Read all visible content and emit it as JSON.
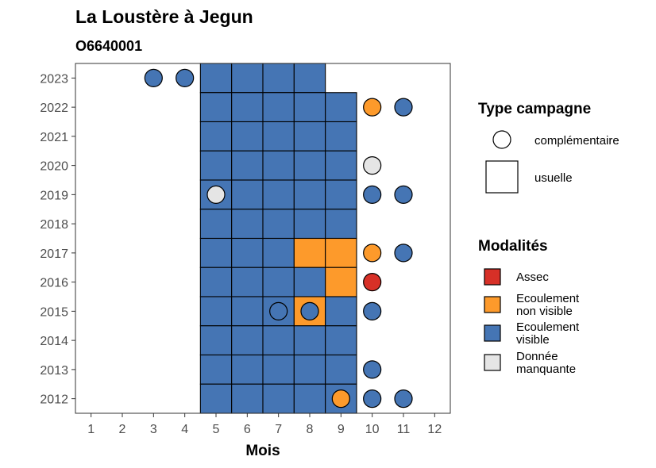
{
  "chart_data": {
    "type": "heatmap",
    "title": "La Loustère à Jegun",
    "subtitle": "O6640001",
    "xlabel": "Mois",
    "ylabel": "",
    "x_ticks": [
      1,
      2,
      3,
      4,
      5,
      6,
      7,
      8,
      9,
      10,
      11,
      12
    ],
    "y_ticks": [
      2012,
      2013,
      2014,
      2015,
      2016,
      2017,
      2018,
      2019,
      2020,
      2021,
      2022,
      2023
    ],
    "xlim": [
      0.5,
      12.5
    ],
    "ylim": [
      2011.5,
      2023.5
    ],
    "colors": {
      "Assec": "#d73027",
      "Ecoulement non visible": "#fd9a2b",
      "Ecoulement visible": "#4575b4",
      "Donnée manquante": "#e5e5e5"
    },
    "legend_shape": {
      "title": "Type campagne",
      "placement": "right",
      "items": [
        {
          "key": "circle",
          "label": "complémentaire"
        },
        {
          "key": "square",
          "label": "usuelle"
        }
      ]
    },
    "legend_fill": {
      "title": "Modalités",
      "placement": "right",
      "items": [
        {
          "key": "Assec",
          "label_lines": [
            "Assec"
          ]
        },
        {
          "key": "Ecoulement non visible",
          "label_lines": [
            "Ecoulement",
            "non visible"
          ]
        },
        {
          "key": "Ecoulement visible",
          "label_lines": [
            "Ecoulement",
            "visible"
          ]
        },
        {
          "key": "Donnée manquante",
          "label_lines": [
            "Donnée",
            "manquante"
          ]
        }
      ]
    },
    "usuelle": [
      {
        "year": 2023,
        "month": 5,
        "value": "Ecoulement visible"
      },
      {
        "year": 2023,
        "month": 6,
        "value": "Ecoulement visible"
      },
      {
        "year": 2023,
        "month": 7,
        "value": "Ecoulement visible"
      },
      {
        "year": 2023,
        "month": 8,
        "value": "Ecoulement visible"
      },
      {
        "year": 2022,
        "month": 5,
        "value": "Ecoulement visible"
      },
      {
        "year": 2022,
        "month": 6,
        "value": "Ecoulement visible"
      },
      {
        "year": 2022,
        "month": 7,
        "value": "Ecoulement visible"
      },
      {
        "year": 2022,
        "month": 8,
        "value": "Ecoulement visible"
      },
      {
        "year": 2022,
        "month": 9,
        "value": "Ecoulement visible"
      },
      {
        "year": 2021,
        "month": 5,
        "value": "Ecoulement visible"
      },
      {
        "year": 2021,
        "month": 6,
        "value": "Ecoulement visible"
      },
      {
        "year": 2021,
        "month": 7,
        "value": "Ecoulement visible"
      },
      {
        "year": 2021,
        "month": 8,
        "value": "Ecoulement visible"
      },
      {
        "year": 2021,
        "month": 9,
        "value": "Ecoulement visible"
      },
      {
        "year": 2020,
        "month": 5,
        "value": "Ecoulement visible"
      },
      {
        "year": 2020,
        "month": 6,
        "value": "Ecoulement visible"
      },
      {
        "year": 2020,
        "month": 7,
        "value": "Ecoulement visible"
      },
      {
        "year": 2020,
        "month": 8,
        "value": "Ecoulement visible"
      },
      {
        "year": 2020,
        "month": 9,
        "value": "Ecoulement visible"
      },
      {
        "year": 2019,
        "month": 5,
        "value": "Ecoulement visible"
      },
      {
        "year": 2019,
        "month": 6,
        "value": "Ecoulement visible"
      },
      {
        "year": 2019,
        "month": 7,
        "value": "Ecoulement visible"
      },
      {
        "year": 2019,
        "month": 8,
        "value": "Ecoulement visible"
      },
      {
        "year": 2019,
        "month": 9,
        "value": "Ecoulement visible"
      },
      {
        "year": 2018,
        "month": 5,
        "value": "Ecoulement visible"
      },
      {
        "year": 2018,
        "month": 6,
        "value": "Ecoulement visible"
      },
      {
        "year": 2018,
        "month": 7,
        "value": "Ecoulement visible"
      },
      {
        "year": 2018,
        "month": 8,
        "value": "Ecoulement visible"
      },
      {
        "year": 2018,
        "month": 9,
        "value": "Ecoulement visible"
      },
      {
        "year": 2017,
        "month": 5,
        "value": "Ecoulement visible"
      },
      {
        "year": 2017,
        "month": 6,
        "value": "Ecoulement visible"
      },
      {
        "year": 2017,
        "month": 7,
        "value": "Ecoulement visible"
      },
      {
        "year": 2017,
        "month": 8,
        "value": "Ecoulement non visible"
      },
      {
        "year": 2017,
        "month": 9,
        "value": "Ecoulement non visible"
      },
      {
        "year": 2016,
        "month": 5,
        "value": "Ecoulement visible"
      },
      {
        "year": 2016,
        "month": 6,
        "value": "Ecoulement visible"
      },
      {
        "year": 2016,
        "month": 7,
        "value": "Ecoulement visible"
      },
      {
        "year": 2016,
        "month": 8,
        "value": "Ecoulement visible"
      },
      {
        "year": 2016,
        "month": 9,
        "value": "Ecoulement non visible"
      },
      {
        "year": 2015,
        "month": 5,
        "value": "Ecoulement visible"
      },
      {
        "year": 2015,
        "month": 6,
        "value": "Ecoulement visible"
      },
      {
        "year": 2015,
        "month": 7,
        "value": "Ecoulement visible"
      },
      {
        "year": 2015,
        "month": 8,
        "value": "Ecoulement non visible"
      },
      {
        "year": 2015,
        "month": 9,
        "value": "Ecoulement visible"
      },
      {
        "year": 2014,
        "month": 5,
        "value": "Ecoulement visible"
      },
      {
        "year": 2014,
        "month": 6,
        "value": "Ecoulement visible"
      },
      {
        "year": 2014,
        "month": 7,
        "value": "Ecoulement visible"
      },
      {
        "year": 2014,
        "month": 8,
        "value": "Ecoulement visible"
      },
      {
        "year": 2014,
        "month": 9,
        "value": "Ecoulement visible"
      },
      {
        "year": 2013,
        "month": 5,
        "value": "Ecoulement visible"
      },
      {
        "year": 2013,
        "month": 6,
        "value": "Ecoulement visible"
      },
      {
        "year": 2013,
        "month": 7,
        "value": "Ecoulement visible"
      },
      {
        "year": 2013,
        "month": 8,
        "value": "Ecoulement visible"
      },
      {
        "year": 2013,
        "month": 9,
        "value": "Ecoulement visible"
      },
      {
        "year": 2012,
        "month": 5,
        "value": "Ecoulement visible"
      },
      {
        "year": 2012,
        "month": 6,
        "value": "Ecoulement visible"
      },
      {
        "year": 2012,
        "month": 7,
        "value": "Ecoulement visible"
      },
      {
        "year": 2012,
        "month": 8,
        "value": "Ecoulement visible"
      },
      {
        "year": 2012,
        "month": 9,
        "value": "Ecoulement visible"
      }
    ],
    "complementaire": [
      {
        "year": 2023,
        "month": 3,
        "value": "Ecoulement visible"
      },
      {
        "year": 2023,
        "month": 4,
        "value": "Ecoulement visible"
      },
      {
        "year": 2022,
        "month": 10,
        "value": "Ecoulement non visible"
      },
      {
        "year": 2022,
        "month": 11,
        "value": "Ecoulement visible"
      },
      {
        "year": 2020,
        "month": 10,
        "value": "Donnée manquante"
      },
      {
        "year": 2019,
        "month": 5,
        "value": "Donnée manquante"
      },
      {
        "year": 2019,
        "month": 10,
        "value": "Ecoulement visible"
      },
      {
        "year": 2019,
        "month": 11,
        "value": "Ecoulement visible"
      },
      {
        "year": 2017,
        "month": 10,
        "value": "Ecoulement non visible"
      },
      {
        "year": 2017,
        "month": 11,
        "value": "Ecoulement visible"
      },
      {
        "year": 2016,
        "month": 10,
        "value": "Assec"
      },
      {
        "year": 2015,
        "month": 7,
        "value": "Ecoulement visible"
      },
      {
        "year": 2015,
        "month": 8,
        "value": "Ecoulement visible"
      },
      {
        "year": 2015,
        "month": 10,
        "value": "Ecoulement visible"
      },
      {
        "year": 2013,
        "month": 10,
        "value": "Ecoulement visible"
      },
      {
        "year": 2012,
        "month": 9,
        "value": "Ecoulement non visible"
      },
      {
        "year": 2012,
        "month": 10,
        "value": "Ecoulement visible"
      },
      {
        "year": 2012,
        "month": 11,
        "value": "Ecoulement visible"
      }
    ]
  }
}
